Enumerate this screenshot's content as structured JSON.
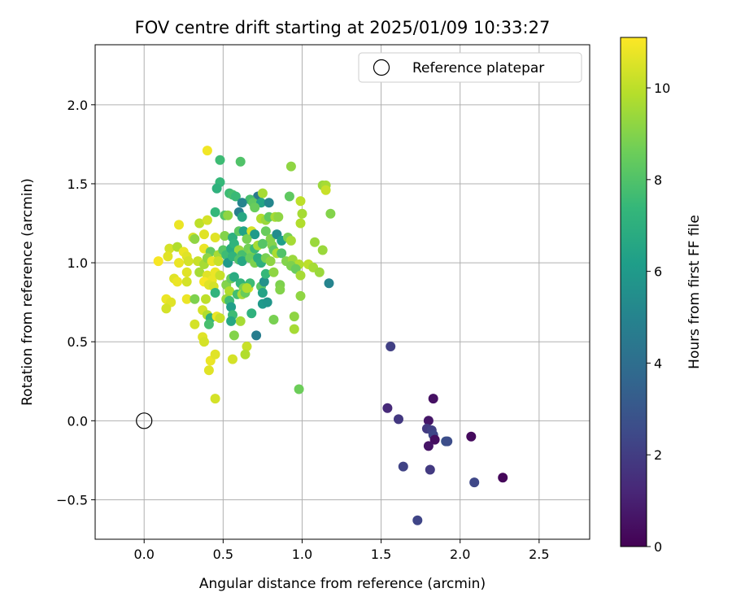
{
  "chart_data": {
    "type": "scatter",
    "title": "FOV centre drift starting at 2025/01/09 10:33:27",
    "xlabel": "Angular distance from reference (arcmin)",
    "ylabel": "Rotation from reference (arcmin)",
    "xlim": [
      -0.31,
      2.82
    ],
    "ylim": [
      -0.75,
      2.38
    ],
    "xticks": [
      0.0,
      0.5,
      1.0,
      1.5,
      2.0,
      2.5
    ],
    "xtick_labels": [
      "0.0",
      "0.5",
      "1.0",
      "1.5",
      "2.0",
      "2.5"
    ],
    "yticks": [
      -0.5,
      0.0,
      0.5,
      1.0,
      1.5,
      2.0
    ],
    "ytick_labels": [
      "−0.5",
      "0.0",
      "0.5",
      "1.0",
      "1.5",
      "2.0"
    ],
    "grid": true,
    "colormap": "viridis",
    "colorbar": {
      "label": "Hours from first FF file",
      "range": [
        0,
        11.1
      ],
      "ticks": [
        0,
        2,
        4,
        6,
        8,
        10
      ],
      "tick_labels": [
        "0",
        "2",
        "4",
        "6",
        "8",
        "10"
      ]
    },
    "legend": {
      "position": "top-right",
      "entries": [
        {
          "label": "Reference platepar",
          "marker": "open-circle"
        }
      ]
    },
    "reference_point": {
      "name": "Reference platepar",
      "x": 0.0,
      "y": 0.0,
      "color": "#000000"
    },
    "series": [
      {
        "points": [
          [
            1.56,
            0.47,
            2.1
          ],
          [
            1.54,
            0.08,
            1.3
          ],
          [
            1.61,
            0.01,
            1.8
          ],
          [
            1.83,
            0.14,
            0.5
          ],
          [
            1.8,
            0.0,
            0.7
          ],
          [
            1.79,
            -0.05,
            1.9
          ],
          [
            1.82,
            -0.06,
            2.1
          ],
          [
            1.83,
            -0.09,
            2.3
          ],
          [
            1.84,
            -0.12,
            0.4
          ],
          [
            1.8,
            -0.16,
            0.6
          ],
          [
            1.91,
            -0.13,
            2.8
          ],
          [
            1.92,
            -0.13,
            2.6
          ],
          [
            2.07,
            -0.1,
            0.3
          ],
          [
            1.64,
            -0.29,
            2.2
          ],
          [
            1.81,
            -0.31,
            1.9
          ],
          [
            2.09,
            -0.39,
            2.4
          ],
          [
            2.27,
            -0.36,
            0.2
          ],
          [
            1.73,
            -0.63,
            2.3
          ],
          [
            0.4,
            1.71,
            10.9
          ],
          [
            0.48,
            1.65,
            7.6
          ],
          [
            0.61,
            1.64,
            8.0
          ],
          [
            0.93,
            1.61,
            9.2
          ],
          [
            0.48,
            1.51,
            7.4
          ],
          [
            0.46,
            1.47,
            7.1
          ],
          [
            1.13,
            1.49,
            9.4
          ],
          [
            1.15,
            1.49,
            9.6
          ],
          [
            1.15,
            1.46,
            10.2
          ],
          [
            0.54,
            1.44,
            7.6
          ],
          [
            0.56,
            1.43,
            7.8
          ],
          [
            0.58,
            1.42,
            7.5
          ],
          [
            0.72,
            1.42,
            4.5
          ],
          [
            0.75,
            1.44,
            9.6
          ],
          [
            0.67,
            1.4,
            7.8
          ],
          [
            0.69,
            1.38,
            8.3
          ],
          [
            0.74,
            1.38,
            6.5
          ],
          [
            0.79,
            1.38,
            5.1
          ],
          [
            0.92,
            1.42,
            8.3
          ],
          [
            0.99,
            1.39,
            10.0
          ],
          [
            0.62,
            1.38,
            5.0
          ],
          [
            0.7,
            1.35,
            8.5
          ],
          [
            0.35,
            1.25,
            10.0
          ],
          [
            0.4,
            1.27,
            10.4
          ],
          [
            0.45,
            1.32,
            7.4
          ],
          [
            0.51,
            1.3,
            8.1
          ],
          [
            0.53,
            1.3,
            9.2
          ],
          [
            0.6,
            1.32,
            4.8
          ],
          [
            0.62,
            1.29,
            6.6
          ],
          [
            1.0,
            1.31,
            9.6
          ],
          [
            1.18,
            1.31,
            9.0
          ],
          [
            0.22,
            1.24,
            10.8
          ],
          [
            0.74,
            1.28,
            9.8
          ],
          [
            0.77,
            1.27,
            9.4
          ],
          [
            0.79,
            1.29,
            8.3
          ],
          [
            0.83,
            1.29,
            9.6
          ],
          [
            0.85,
            1.29,
            9.2
          ],
          [
            0.99,
            1.25,
            9.8
          ],
          [
            0.31,
            1.16,
            10.4
          ],
          [
            0.32,
            1.15,
            9.2
          ],
          [
            0.38,
            1.18,
            10.6
          ],
          [
            0.45,
            1.16,
            10.6
          ],
          [
            0.51,
            1.17,
            9.0
          ],
          [
            0.56,
            1.16,
            7.0
          ],
          [
            0.6,
            1.2,
            8.3
          ],
          [
            0.63,
            1.2,
            6.4
          ],
          [
            0.68,
            1.2,
            10.4
          ],
          [
            0.7,
            1.18,
            6.0
          ],
          [
            0.65,
            1.15,
            8.8
          ],
          [
            0.77,
            1.2,
            8.5
          ],
          [
            0.8,
            1.15,
            9.0
          ],
          [
            0.84,
            1.18,
            5.4
          ],
          [
            0.87,
            1.14,
            6.2
          ],
          [
            0.91,
            1.16,
            8.8
          ],
          [
            0.93,
            1.14,
            9.6
          ],
          [
            1.08,
            1.13,
            9.4
          ],
          [
            0.16,
            1.09,
            10.4
          ],
          [
            0.21,
            1.1,
            9.8
          ],
          [
            0.25,
            1.07,
            10.8
          ],
          [
            0.27,
            1.04,
            10.6
          ],
          [
            0.38,
            1.09,
            10.8
          ],
          [
            0.42,
            1.07,
            8.4
          ],
          [
            0.47,
            1.05,
            9.6
          ],
          [
            0.5,
            1.08,
            8.2
          ],
          [
            0.52,
            1.05,
            7.6
          ],
          [
            0.55,
            1.09,
            6.8
          ],
          [
            0.57,
            1.12,
            7.2
          ],
          [
            0.6,
            1.08,
            9.4
          ],
          [
            0.62,
            1.05,
            7.8
          ],
          [
            0.66,
            1.09,
            8.7
          ],
          [
            0.68,
            1.06,
            8.9
          ],
          [
            0.7,
            1.09,
            7.5
          ],
          [
            0.72,
            1.11,
            9.6
          ],
          [
            0.75,
            1.12,
            8.1
          ],
          [
            0.81,
            1.11,
            9.0
          ],
          [
            0.82,
            1.08,
            8.3
          ],
          [
            0.84,
            1.06,
            9.7
          ],
          [
            0.87,
            1.06,
            8.0
          ],
          [
            1.13,
            1.08,
            9.4
          ],
          [
            0.09,
            1.01,
            11.0
          ],
          [
            0.15,
            1.04,
            10.6
          ],
          [
            0.22,
            1.0,
            10.8
          ],
          [
            0.28,
            1.01,
            10.4
          ],
          [
            0.34,
            1.01,
            10.2
          ],
          [
            0.38,
            0.99,
            9.6
          ],
          [
            0.4,
            1.03,
            9.2
          ],
          [
            0.43,
            1.01,
            10.8
          ],
          [
            0.47,
            1.01,
            10.2
          ],
          [
            0.53,
            1.0,
            6.0
          ],
          [
            0.56,
            1.04,
            7.2
          ],
          [
            0.6,
            1.02,
            8.0
          ],
          [
            0.62,
            1.01,
            6.6
          ],
          [
            0.67,
            1.03,
            8.5
          ],
          [
            0.7,
            1.0,
            8.9
          ],
          [
            0.72,
            1.03,
            6.9
          ],
          [
            0.74,
            1.0,
            7.0
          ],
          [
            0.77,
            1.03,
            8.8
          ],
          [
            0.8,
            1.01,
            9.2
          ],
          [
            0.9,
            1.01,
            9.0
          ],
          [
            0.94,
            1.02,
            9.4
          ],
          [
            0.98,
            0.99,
            9.8
          ],
          [
            1.04,
            0.99,
            10.0
          ],
          [
            1.07,
            0.97,
            9.6
          ],
          [
            1.11,
            0.94,
            9.4
          ],
          [
            0.93,
            0.98,
            8.9
          ],
          [
            0.96,
            0.96,
            8.5
          ],
          [
            0.19,
            0.9,
            10.6
          ],
          [
            0.21,
            0.88,
            10.8
          ],
          [
            0.27,
            0.88,
            10.4
          ],
          [
            0.27,
            0.94,
            10.6
          ],
          [
            0.35,
            0.94,
            9.6
          ],
          [
            0.4,
            0.92,
            10.6
          ],
          [
            0.43,
            0.89,
            10.8
          ],
          [
            0.45,
            0.94,
            10.8
          ],
          [
            0.48,
            0.92,
            10.2
          ],
          [
            0.38,
            0.88,
            11.0
          ],
          [
            0.41,
            0.86,
            10.6
          ],
          [
            0.44,
            0.85,
            10.4
          ],
          [
            0.45,
            0.81,
            7.2
          ],
          [
            0.52,
            0.86,
            9.0
          ],
          [
            0.55,
            0.9,
            8.5
          ],
          [
            0.57,
            0.91,
            6.8
          ],
          [
            0.61,
            0.87,
            7.3
          ],
          [
            0.63,
            0.84,
            8.8
          ],
          [
            0.66,
            0.84,
            10.4
          ],
          [
            0.67,
            0.87,
            7.6
          ],
          [
            0.74,
            0.85,
            8.2
          ],
          [
            0.76,
            0.88,
            5.6
          ],
          [
            0.77,
            0.93,
            7.4
          ],
          [
            0.82,
            0.94,
            9.2
          ],
          [
            0.86,
            0.86,
            8.9
          ],
          [
            0.86,
            0.83,
            9.0
          ],
          [
            0.99,
            0.92,
            9.6
          ],
          [
            1.17,
            0.87,
            5.0
          ],
          [
            0.54,
            0.82,
            9.8
          ],
          [
            0.59,
            0.8,
            7.7
          ],
          [
            0.62,
            0.8,
            9.6
          ],
          [
            0.64,
            0.81,
            8.5
          ],
          [
            0.65,
            0.84,
            9.8
          ],
          [
            0.75,
            0.81,
            6.4
          ],
          [
            0.99,
            0.79,
            9.2
          ],
          [
            0.14,
            0.77,
            10.8
          ],
          [
            0.17,
            0.75,
            10.6
          ],
          [
            0.14,
            0.71,
            10.4
          ],
          [
            0.27,
            0.77,
            10.8
          ],
          [
            0.32,
            0.77,
            8.9
          ],
          [
            0.39,
            0.77,
            10.0
          ],
          [
            0.52,
            0.77,
            9.4
          ],
          [
            0.54,
            0.76,
            7.6
          ],
          [
            0.75,
            0.74,
            6.0
          ],
          [
            0.78,
            0.75,
            5.8
          ],
          [
            0.37,
            0.7,
            10.4
          ],
          [
            0.4,
            0.67,
            9.8
          ],
          [
            0.42,
            0.65,
            7.0
          ],
          [
            0.46,
            0.66,
            10.8
          ],
          [
            0.48,
            0.65,
            10.2
          ],
          [
            0.55,
            0.72,
            6.2
          ],
          [
            0.56,
            0.67,
            7.6
          ],
          [
            0.61,
            0.63,
            9.6
          ],
          [
            0.68,
            0.68,
            7.1
          ],
          [
            0.82,
            0.64,
            8.8
          ],
          [
            0.95,
            0.66,
            9.2
          ],
          [
            0.32,
            0.61,
            10.4
          ],
          [
            0.41,
            0.61,
            7.8
          ],
          [
            0.55,
            0.63,
            6.6
          ],
          [
            0.95,
            0.58,
            9.6
          ],
          [
            0.37,
            0.53,
            10.6
          ],
          [
            0.38,
            0.5,
            10.4
          ],
          [
            0.57,
            0.54,
            9.0
          ],
          [
            0.71,
            0.54,
            4.7
          ],
          [
            0.65,
            0.47,
            10.2
          ],
          [
            0.42,
            0.38,
            10.8
          ],
          [
            0.45,
            0.42,
            10.6
          ],
          [
            0.64,
            0.42,
            9.8
          ],
          [
            0.56,
            0.39,
            10.4
          ],
          [
            0.41,
            0.32,
            10.6
          ],
          [
            0.98,
            0.2,
            8.6
          ],
          [
            0.45,
            0.14,
            10.4
          ]
        ]
      }
    ]
  }
}
